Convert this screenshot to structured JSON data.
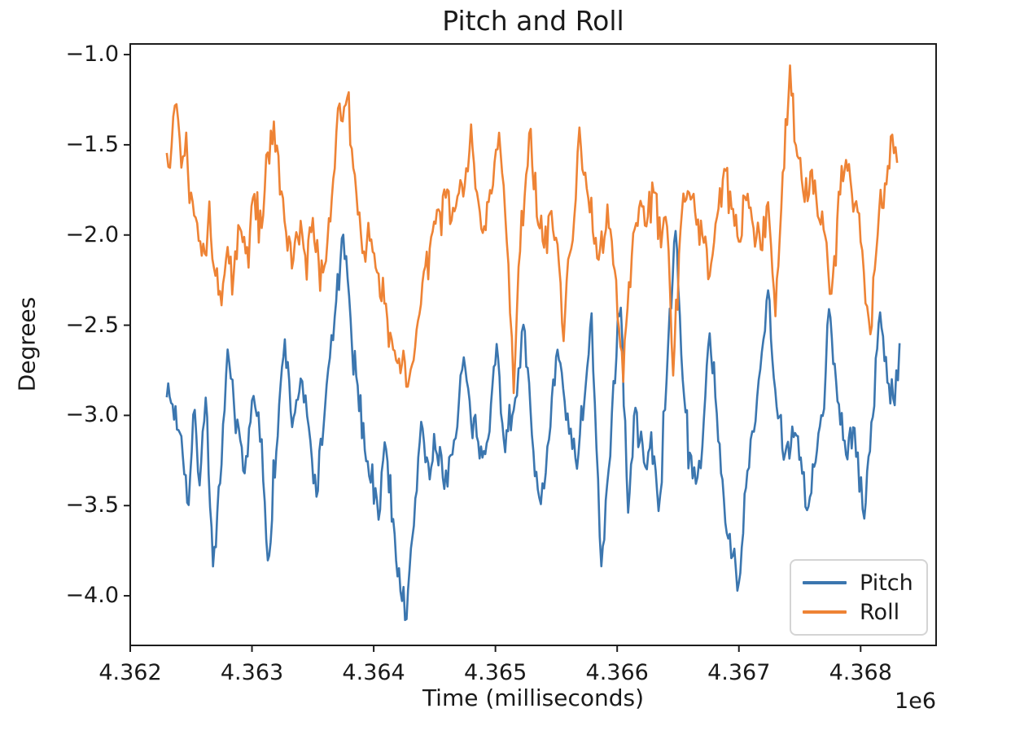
{
  "figure": {
    "background": "#ffffff",
    "spine_color": "#1d1d1d",
    "text_color": "#1a1a1a"
  },
  "chart_data": {
    "type": "line",
    "title": "Pitch and Roll",
    "xlabel": "Time (milliseconds)",
    "ylabel": "Degrees",
    "x_offset_label": "1e6",
    "grid": false,
    "xlim": [
      4.362,
      4.36862
    ],
    "ylim": [
      -4.275,
      -0.941
    ],
    "xticks": {
      "values": [
        4.362,
        4.363,
        4.364,
        4.365,
        4.366,
        4.367,
        4.368
      ],
      "labels": [
        "4.362",
        "4.363",
        "4.364",
        "4.365",
        "4.366",
        "4.367",
        "4.368"
      ]
    },
    "yticks": {
      "values": [
        -1.0,
        -1.5,
        -2.0,
        -2.5,
        -3.0,
        -3.5,
        -4.0
      ],
      "labels": [
        "−1.0",
        "−1.5",
        "−2.0",
        "−2.5",
        "−3.0",
        "−3.5",
        "−4.0"
      ]
    },
    "legend": {
      "position": "lower right",
      "entries": [
        {
          "label": "Pitch",
          "color": "#3b76af"
        },
        {
          "label": "Roll",
          "color": "#ee8335"
        }
      ]
    },
    "noise_dt": 1.25e-05,
    "series": [
      {
        "name": "Pitch",
        "color": "#3b76af",
        "line_width": 2.6,
        "noise_amp": 0.1,
        "noise_seed": 7,
        "points": [
          [
            4.3623,
            -2.85
          ],
          [
            4.36242,
            -3.1
          ],
          [
            4.36248,
            -3.5
          ],
          [
            4.36253,
            -2.95
          ],
          [
            4.36257,
            -3.38
          ],
          [
            4.36262,
            -2.88
          ],
          [
            4.36268,
            -3.84
          ],
          [
            4.36275,
            -3.3
          ],
          [
            4.3628,
            -2.65
          ],
          [
            4.36288,
            -3.05
          ],
          [
            4.36294,
            -3.33
          ],
          [
            4.363,
            -2.9
          ],
          [
            4.36308,
            -3.15
          ],
          [
            4.36313,
            -3.8
          ],
          [
            4.3632,
            -3.2
          ],
          [
            4.36327,
            -2.58
          ],
          [
            4.36333,
            -3.05
          ],
          [
            4.3634,
            -2.8
          ],
          [
            4.36348,
            -3.15
          ],
          [
            4.36353,
            -3.44
          ],
          [
            4.3636,
            -2.95
          ],
          [
            4.36368,
            -2.45
          ],
          [
            4.36375,
            -2.0
          ],
          [
            4.36381,
            -2.5
          ],
          [
            4.36388,
            -2.95
          ],
          [
            4.36395,
            -3.25
          ],
          [
            4.36404,
            -3.56
          ],
          [
            4.36409,
            -3.15
          ],
          [
            4.36416,
            -3.6
          ],
          [
            4.36422,
            -3.95
          ],
          [
            4.36427,
            -4.12
          ],
          [
            4.36433,
            -3.6
          ],
          [
            4.36439,
            -3.02
          ],
          [
            4.36446,
            -3.35
          ],
          [
            4.36452,
            -3.2
          ],
          [
            4.36458,
            -3.38
          ],
          [
            4.36466,
            -3.15
          ],
          [
            4.36474,
            -2.68
          ],
          [
            4.3648,
            -3.05
          ],
          [
            4.36487,
            -3.22
          ],
          [
            4.36494,
            -3.1
          ],
          [
            4.36501,
            -2.62
          ],
          [
            4.36508,
            -3.18
          ],
          [
            4.36515,
            -2.95
          ],
          [
            4.36523,
            -2.5
          ],
          [
            4.3653,
            -3.1
          ],
          [
            4.36536,
            -3.48
          ],
          [
            4.36544,
            -3.15
          ],
          [
            4.36551,
            -2.63
          ],
          [
            4.36558,
            -3.0
          ],
          [
            4.36567,
            -3.3
          ],
          [
            4.36573,
            -2.9
          ],
          [
            4.36579,
            -2.41
          ],
          [
            4.36583,
            -3.2
          ],
          [
            4.36587,
            -3.82
          ],
          [
            4.36593,
            -3.3
          ],
          [
            4.36597,
            -2.85
          ],
          [
            4.36603,
            -2.4
          ],
          [
            4.36609,
            -3.55
          ],
          [
            4.36615,
            -2.95
          ],
          [
            4.36622,
            -3.25
          ],
          [
            4.36628,
            -3.12
          ],
          [
            4.36634,
            -3.55
          ],
          [
            4.36642,
            -2.6
          ],
          [
            4.36648,
            -2.0
          ],
          [
            4.36655,
            -2.9
          ],
          [
            4.36662,
            -3.35
          ],
          [
            4.3667,
            -3.2
          ],
          [
            4.36676,
            -2.52
          ],
          [
            4.36683,
            -3.1
          ],
          [
            4.3669,
            -3.64
          ],
          [
            4.367,
            -3.95
          ],
          [
            4.36707,
            -3.3
          ],
          [
            4.36715,
            -2.9
          ],
          [
            4.36724,
            -2.29
          ],
          [
            4.36731,
            -2.95
          ],
          [
            4.36738,
            -3.2
          ],
          [
            4.36745,
            -3.1
          ],
          [
            4.36752,
            -3.3
          ],
          [
            4.36756,
            -3.55
          ],
          [
            4.36763,
            -3.25
          ],
          [
            4.3677,
            -2.95
          ],
          [
            4.36774,
            -2.4
          ],
          [
            4.36781,
            -2.9
          ],
          [
            4.36788,
            -3.22
          ],
          [
            4.36795,
            -3.1
          ],
          [
            4.36803,
            -3.55
          ],
          [
            4.3681,
            -3.0
          ],
          [
            4.36816,
            -2.41
          ],
          [
            4.36822,
            -2.8
          ],
          [
            4.36828,
            -2.95
          ],
          [
            4.36832,
            -2.6
          ]
        ]
      },
      {
        "name": "Roll",
        "color": "#ee8335",
        "line_width": 2.6,
        "noise_amp": 0.12,
        "noise_seed": 13,
        "points": [
          [
            4.3623,
            -1.55
          ],
          [
            4.36238,
            -1.26
          ],
          [
            4.36242,
            -1.6
          ],
          [
            4.36246,
            -1.45
          ],
          [
            4.3625,
            -1.75
          ],
          [
            4.36255,
            -1.9
          ],
          [
            4.3626,
            -2.1
          ],
          [
            4.36265,
            -1.85
          ],
          [
            4.3627,
            -2.2
          ],
          [
            4.36275,
            -2.4
          ],
          [
            4.3628,
            -2.05
          ],
          [
            4.36285,
            -2.25
          ],
          [
            4.3629,
            -1.95
          ],
          [
            4.36296,
            -2.1
          ],
          [
            4.36302,
            -1.8
          ],
          [
            4.36308,
            -1.95
          ],
          [
            4.36313,
            -1.55
          ],
          [
            4.36318,
            -1.38
          ],
          [
            4.36323,
            -1.75
          ],
          [
            4.36328,
            -2.0
          ],
          [
            4.36334,
            -2.15
          ],
          [
            4.3634,
            -1.95
          ],
          [
            4.36345,
            -2.2
          ],
          [
            4.3635,
            -1.9
          ],
          [
            4.36356,
            -2.3
          ],
          [
            4.36362,
            -2.0
          ],
          [
            4.36368,
            -1.6
          ],
          [
            4.36372,
            -1.3
          ],
          [
            4.36377,
            -1.25
          ],
          [
            4.36382,
            -1.55
          ],
          [
            4.36387,
            -1.9
          ],
          [
            4.36392,
            -2.1
          ],
          [
            4.36398,
            -2.0
          ],
          [
            4.36404,
            -2.25
          ],
          [
            4.3641,
            -2.4
          ],
          [
            4.36416,
            -2.6
          ],
          [
            4.36422,
            -2.75
          ],
          [
            4.36428,
            -2.86
          ],
          [
            4.36434,
            -2.6
          ],
          [
            4.3644,
            -2.3
          ],
          [
            4.36446,
            -2.05
          ],
          [
            4.36452,
            -1.9
          ],
          [
            4.36458,
            -1.75
          ],
          [
            4.36464,
            -1.9
          ],
          [
            4.3647,
            -1.8
          ],
          [
            4.36476,
            -1.65
          ],
          [
            4.3648,
            -1.42
          ],
          [
            4.36486,
            -1.8
          ],
          [
            4.36492,
            -1.95
          ],
          [
            4.36498,
            -1.7
          ],
          [
            4.36503,
            -1.42
          ],
          [
            4.36508,
            -1.9
          ],
          [
            4.36512,
            -2.45
          ],
          [
            4.36515,
            -2.86
          ],
          [
            4.36519,
            -2.2
          ],
          [
            4.36524,
            -1.75
          ],
          [
            4.36529,
            -1.44
          ],
          [
            4.36534,
            -1.85
          ],
          [
            4.3654,
            -2.05
          ],
          [
            4.36546,
            -1.9
          ],
          [
            4.36551,
            -2.1
          ],
          [
            4.36556,
            -2.59
          ],
          [
            4.36561,
            -2.1
          ],
          [
            4.36566,
            -1.8
          ],
          [
            4.36569,
            -1.42
          ],
          [
            4.36575,
            -1.75
          ],
          [
            4.3658,
            -1.95
          ],
          [
            4.36586,
            -2.1
          ],
          [
            4.36592,
            -1.85
          ],
          [
            4.36598,
            -2.2
          ],
          [
            4.36605,
            -2.81
          ],
          [
            4.36612,
            -2.1
          ],
          [
            4.36618,
            -1.85
          ],
          [
            4.36624,
            -1.95
          ],
          [
            4.3663,
            -1.75
          ],
          [
            4.36636,
            -2.05
          ],
          [
            4.36641,
            -1.95
          ],
          [
            4.36646,
            -2.78
          ],
          [
            4.36652,
            -1.95
          ],
          [
            4.36658,
            -1.75
          ],
          [
            4.36664,
            -1.85
          ],
          [
            4.3667,
            -2.0
          ],
          [
            4.36676,
            -2.2
          ],
          [
            4.36682,
            -1.9
          ],
          [
            4.36688,
            -1.65
          ],
          [
            4.36694,
            -1.85
          ],
          [
            4.367,
            -2.05
          ],
          [
            4.36706,
            -1.8
          ],
          [
            4.36712,
            -1.95
          ],
          [
            4.36718,
            -2.1
          ],
          [
            4.36724,
            -1.85
          ],
          [
            4.3673,
            -2.46
          ],
          [
            4.36736,
            -1.7
          ],
          [
            4.36742,
            -1.09
          ],
          [
            4.36748,
            -1.55
          ],
          [
            4.36754,
            -1.8
          ],
          [
            4.3676,
            -1.65
          ],
          [
            4.36766,
            -1.9
          ],
          [
            4.36772,
            -2.05
          ],
          [
            4.36776,
            -2.37
          ],
          [
            4.36782,
            -1.75
          ],
          [
            4.36788,
            -1.6
          ],
          [
            4.36794,
            -1.85
          ],
          [
            4.368,
            -2.0
          ],
          [
            4.36808,
            -2.58
          ],
          [
            4.36814,
            -1.95
          ],
          [
            4.3682,
            -1.7
          ],
          [
            4.36826,
            -1.43
          ],
          [
            4.3683,
            -1.6
          ]
        ]
      }
    ]
  }
}
